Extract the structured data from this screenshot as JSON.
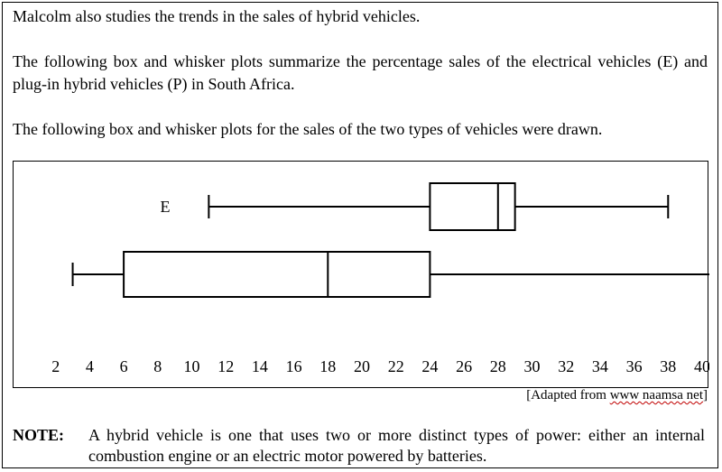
{
  "paragraphs": {
    "intro": "Malcolm also studies the trends in the sales of hybrid vehicles.",
    "description": "The following box and whisker plots summarize  the percentage sales of the electrical vehicles (E) and plug-in hybrid vehicles (P) in South Africa.",
    "drawn": "The following box and whisker plots for the sales of the two types of vehicles were drawn."
  },
  "chart_data": {
    "type": "boxplot",
    "x_ticks": [
      2,
      4,
      6,
      8,
      10,
      12,
      14,
      16,
      18,
      20,
      22,
      24,
      26,
      28,
      30,
      32,
      34,
      36,
      38,
      40
    ],
    "xlim": [
      2,
      41
    ],
    "series": [
      {
        "name": "E",
        "min": 11,
        "q1": 24,
        "median": 28,
        "q3": 29,
        "max": 38
      },
      {
        "name": "",
        "min": 3,
        "q1": 6,
        "median": 18,
        "q3": 24,
        "max": 41
      }
    ]
  },
  "source": {
    "prefix": "[Adapted from ",
    "squiggle": "www naamsa net",
    "suffix": "]"
  },
  "note": {
    "label": "NOTE:",
    "text": "A hybrid vehicle is one that uses two or more distinct types of power: either an internal combustion engine or an electric motor powered by batteries."
  }
}
